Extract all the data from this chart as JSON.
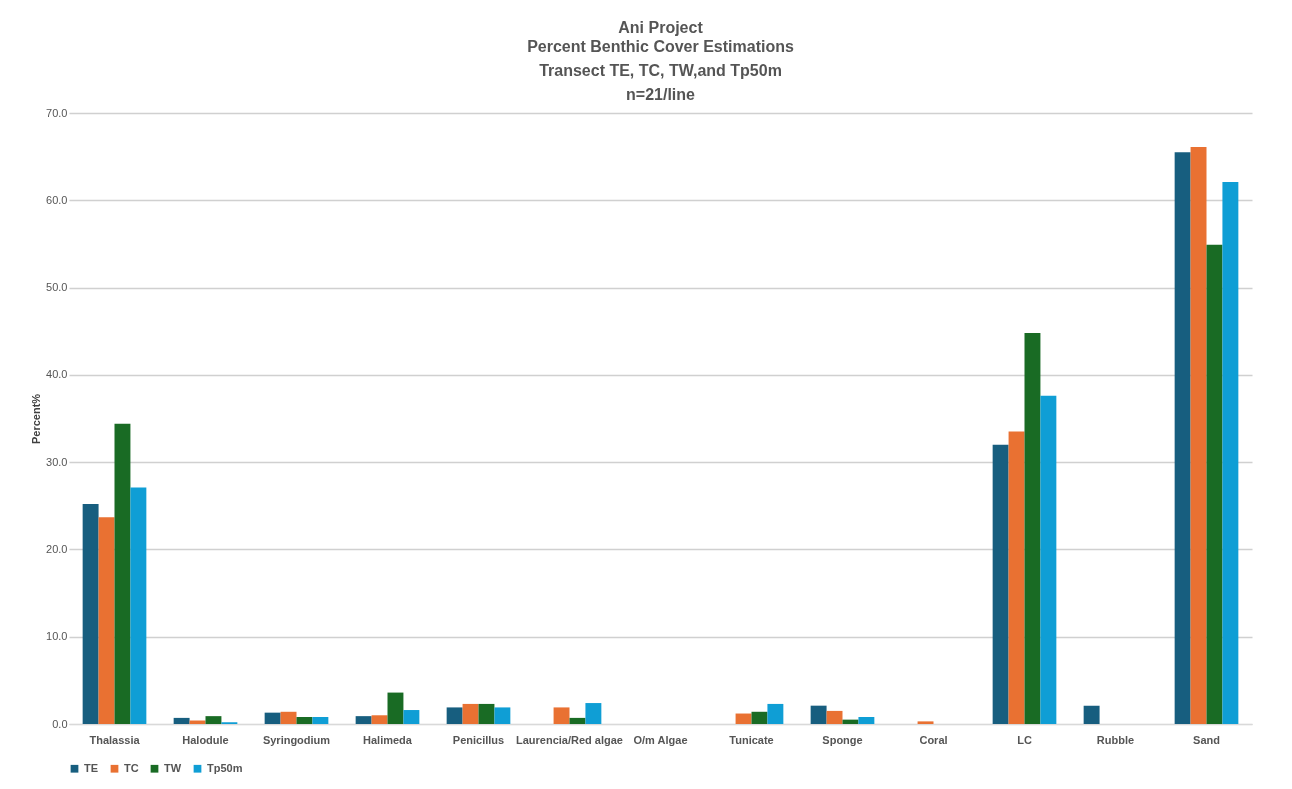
{
  "chart_data": {
    "type": "bar",
    "title": "Ani Project",
    "subtitle": "Percent Benthic Cover Estimations\nTransect TE, TC, TW,and Tp50m\nn=21/line",
    "ylabel": "Percent%",
    "categories": [
      "Thalassia",
      "Halodule",
      "Syringodium",
      "Halimeda",
      "Penicillus",
      "Laurencia/Red algae",
      "O/m Algae",
      "Tunicate",
      "Sponge",
      "Coral",
      "LC",
      "Rubble",
      "Sand"
    ],
    "series": [
      {
        "name": "TE",
        "color": "#175e7f",
        "values": [
          25.2,
          0.7,
          1.3,
          0.9,
          1.9,
          0,
          0,
          0,
          2.1,
          0,
          32.0,
          2.1,
          65.5
        ]
      },
      {
        "name": "TC",
        "color": "#e97132",
        "values": [
          23.7,
          0.4,
          1.4,
          1.0,
          2.3,
          1.9,
          0,
          1.2,
          1.5,
          0.3,
          33.5,
          0,
          66.1
        ]
      },
      {
        "name": "TW",
        "color": "#196b24",
        "values": [
          34.4,
          0.9,
          0.8,
          3.6,
          2.3,
          0.7,
          0,
          1.4,
          0.5,
          0,
          44.8,
          0,
          54.9
        ]
      },
      {
        "name": "Tp50m",
        "color": "#0f9ed5",
        "values": [
          27.1,
          0.2,
          0.8,
          1.6,
          1.9,
          2.4,
          0,
          2.3,
          0.8,
          0,
          37.6,
          0,
          62.1
        ]
      }
    ],
    "ylim": [
      0,
      70
    ],
    "yticks": [
      {
        "value": 0,
        "label": "0.0"
      },
      {
        "value": 10,
        "label": "10.0"
      },
      {
        "value": 20,
        "label": "20.0"
      },
      {
        "value": 30,
        "label": "30.0"
      },
      {
        "value": 40,
        "label": "40.0"
      },
      {
        "value": 50,
        "label": "50.0"
      },
      {
        "value": 60,
        "label": "60.0"
      },
      {
        "value": 70,
        "label": "70.0"
      }
    ],
    "grid": "y",
    "legend": "bottom"
  }
}
